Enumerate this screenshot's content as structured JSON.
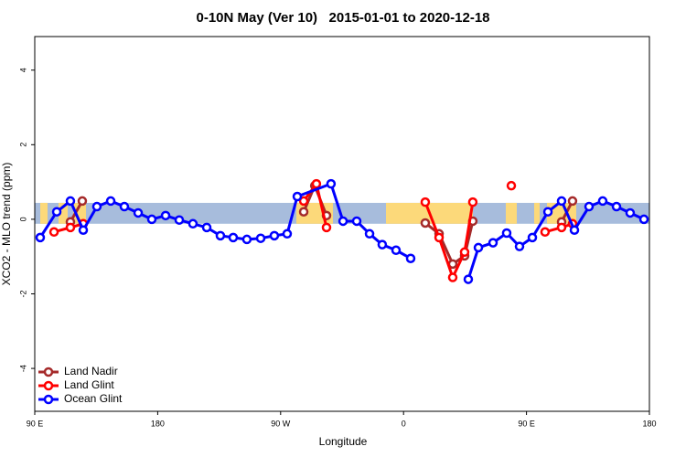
{
  "chart_data": {
    "type": "line",
    "title": "0-10N May (Ver 10)   2015-01-01 to 2020-12-18",
    "x_label": "Longitude",
    "y_label": "XCO2 - MLO trend (ppm)",
    "xlim": [
      90,
      540
    ],
    "xticks": [
      {
        "value": 90,
        "label": "90 E"
      },
      180,
      {
        "value": 270,
        "label": "90 W"
      },
      {
        "value": 360,
        "label": "0"
      },
      {
        "value": 450,
        "label": "90 E"
      },
      {
        "value": 540,
        "label": "180"
      }
    ],
    "ylim": [
      -5.15,
      4.9
    ],
    "yticks": [
      -4,
      -2,
      0,
      2,
      4
    ],
    "band": [
      -0.12,
      0.44
    ],
    "band_color": "#a7bcdc",
    "land_color": "#fcd97a",
    "legend": "bottom-left",
    "series": [
      {
        "name": "Land Nadir",
        "color": "#a52a2a",
        "x": [
          116.1,
          124.8,
          null,
          286.9,
          295.0,
          303.6,
          null,
          375.9,
          386.0,
          396.0,
          404.7,
          410.7,
          null,
          475.7,
          483.7
        ],
        "values": [
          -0.07,
          0.49,
          null,
          0.2,
          0.9,
          0.1,
          null,
          -0.1,
          -0.39,
          -1.2,
          -0.98,
          -0.05,
          null,
          -0.07,
          0.49
        ]
      },
      {
        "name": "Land Glint",
        "color": "#ff0000",
        "x": [
          104.1,
          116.1,
          125.5,
          null,
          286.9,
          296.2,
          303.6,
          null,
          375.9,
          386.0,
          396.0,
          404.7,
          410.7,
          null,
          438.9,
          null,
          463.6,
          475.7,
          483.7
        ],
        "values": [
          -0.34,
          -0.22,
          -0.12,
          null,
          0.49,
          0.95,
          -0.22,
          null,
          0.46,
          -0.49,
          -1.56,
          -0.88,
          0.46,
          null,
          0.9,
          null,
          -0.34,
          -0.22,
          -0.12
        ]
      },
      {
        "name": "Ocean Glint",
        "color": "#0000ff",
        "x": [
          94.0,
          106.1,
          116.1,
          125.5,
          135.5,
          145.6,
          155.6,
          165.7,
          175.7,
          185.8,
          195.8,
          205.8,
          215.9,
          225.9,
          235.3,
          245.3,
          255.4,
          265.4,
          274.8,
          282.2,
          306.9,
          315.7,
          325.7,
          335.1,
          344.4,
          354.5,
          365.2,
          null,
          407.4,
          414.8,
          425.5,
          435.5,
          444.9,
          454.3,
          465.7,
          475.7,
          485.1,
          495.8,
          505.8,
          515.9,
          525.9,
          536.0
        ],
        "values": [
          -0.49,
          0.2,
          0.49,
          -0.29,
          0.34,
          0.49,
          0.34,
          0.17,
          0,
          0.1,
          -0.02,
          -0.12,
          -0.22,
          -0.44,
          -0.49,
          -0.54,
          -0.51,
          -0.44,
          -0.39,
          0.61,
          0.95,
          -0.05,
          -0.05,
          -0.39,
          -0.68,
          -0.83,
          -1.05,
          null,
          -1.61,
          -0.76,
          -0.63,
          -0.37,
          -0.73,
          -0.49,
          0.2,
          0.49,
          -0.29,
          0.34,
          0.49,
          0.34,
          0.17,
          0
        ]
      }
    ]
  }
}
